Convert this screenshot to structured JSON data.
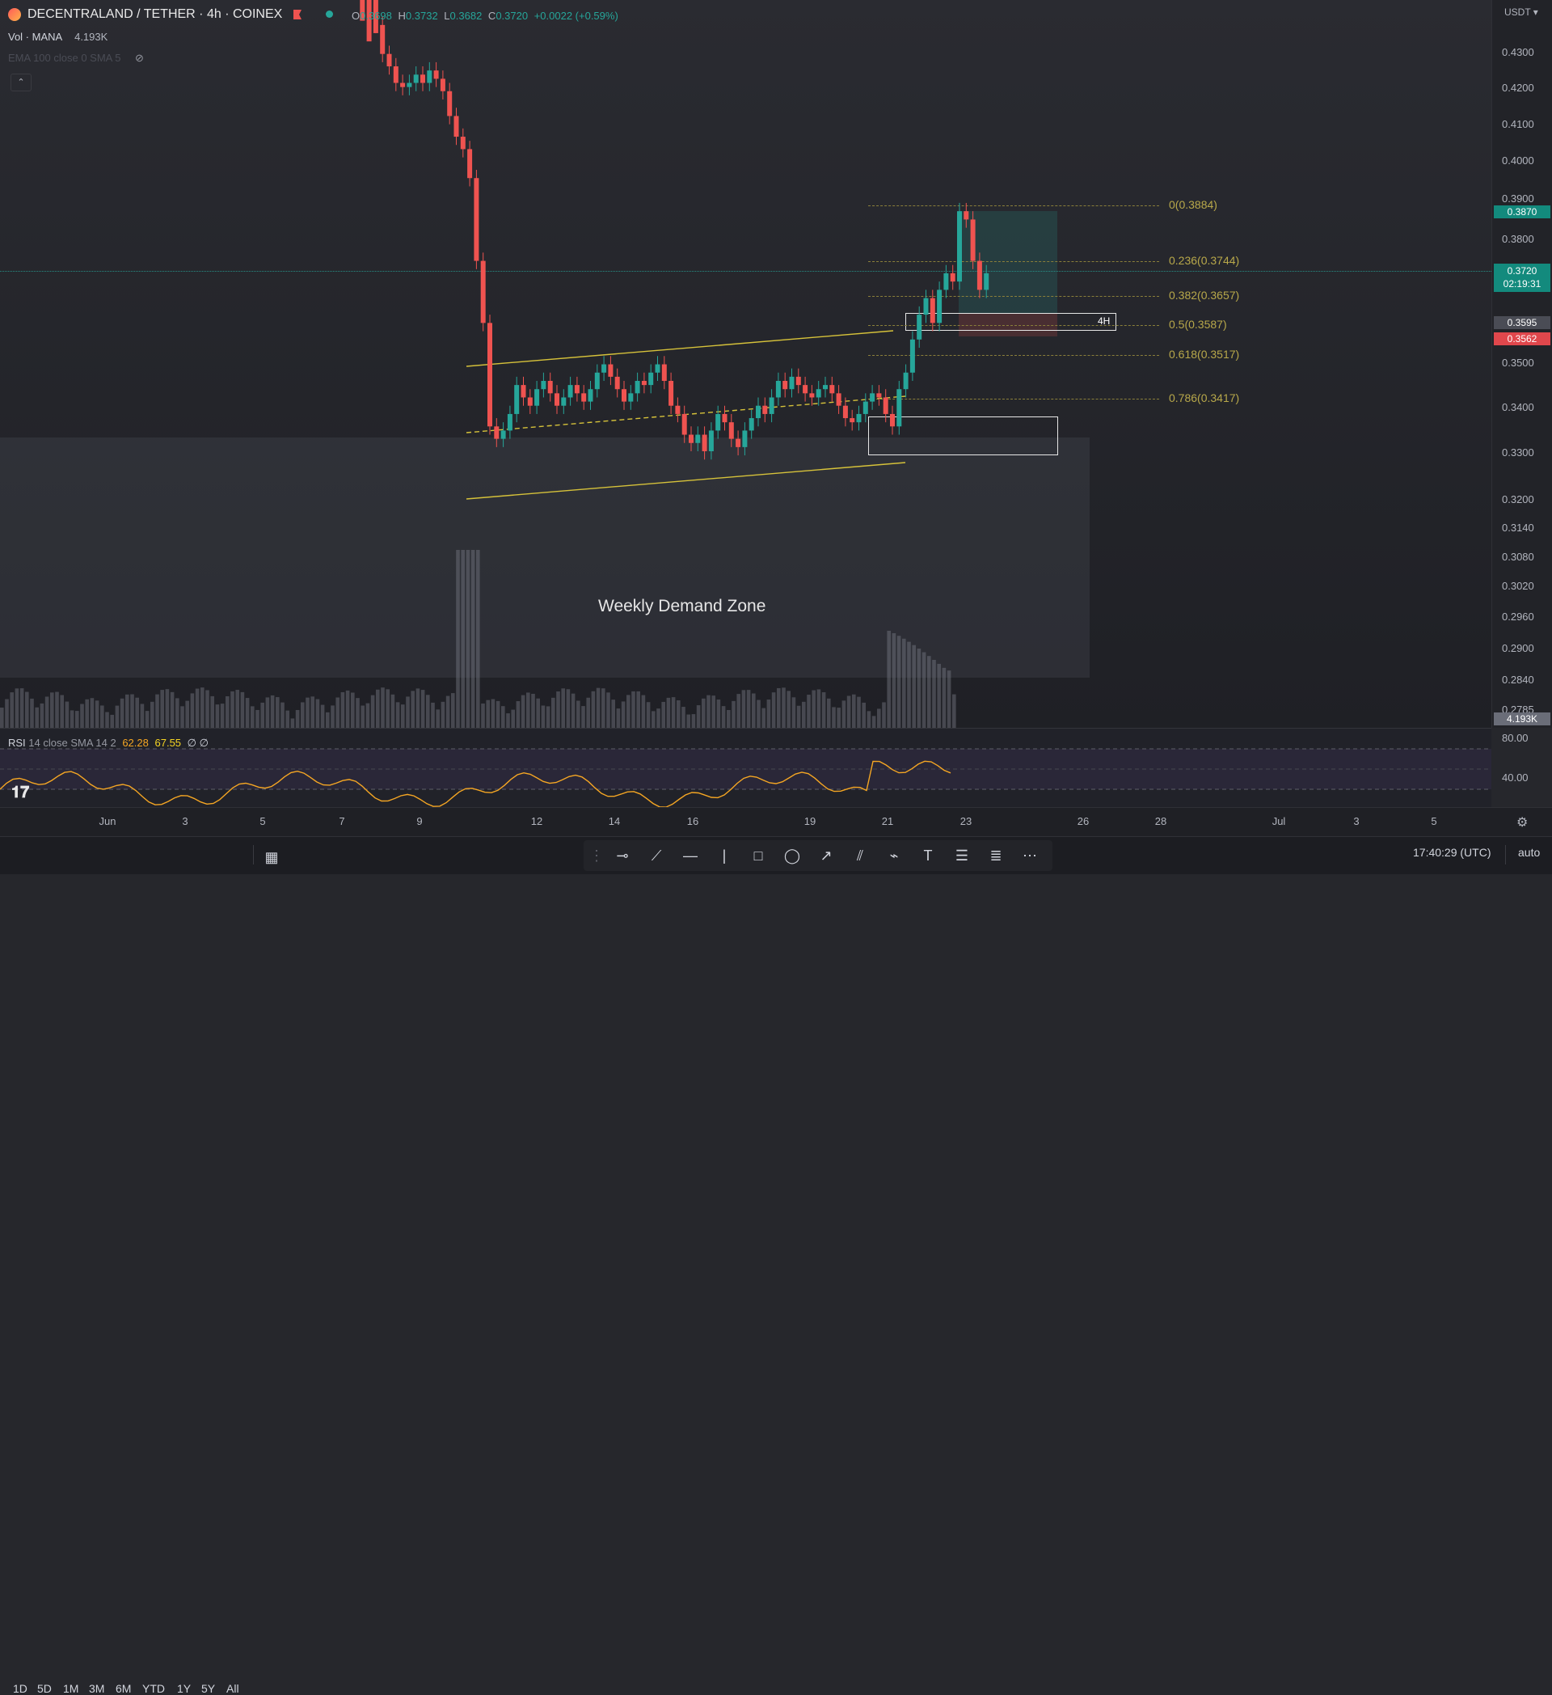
{
  "header": {
    "symbol_title": "DECENTRALAND / TETHER · 4h · COINEX",
    "ohlc": {
      "o_label": "O",
      "o": "0.3698",
      "h_label": "H",
      "h": "0.3732",
      "l_label": "L",
      "l": "0.3682",
      "c_label": "C",
      "c": "0.3720",
      "change": "+0.0022 (+0.59%)"
    },
    "volume_label": "Vol · MANA",
    "volume_value": "4.193K",
    "ema_label": "EMA 100 close 0 SMA 5",
    "currency": "USDT"
  },
  "price_scale": [
    "0.4300",
    "0.4200",
    "0.4100",
    "0.4000",
    "0.3900",
    "0.3800",
    "0.3500",
    "0.3400",
    "0.3300",
    "0.3200",
    "0.3140",
    "0.3080",
    "0.3020",
    "0.2960",
    "0.2900",
    "0.2840",
    "0.2785"
  ],
  "price_badges": {
    "high_marker": "0.3870",
    "last_price": "0.3720",
    "countdown": "02:19:31",
    "level_grey": "0.3595",
    "level_red": "0.3562",
    "volume": "4.193K"
  },
  "fib_levels": [
    "0(0.3884)",
    "0.236(0.3744)",
    "0.382(0.3657)",
    "0.5(0.3587)",
    "0.618(0.3517)",
    "0.786(0.3417)"
  ],
  "annotations": {
    "demand_zone": "Weekly Demand Zone",
    "timeframe_box": "4H"
  },
  "rsi": {
    "label": "RSI",
    "params": "14 close SMA 14 2",
    "value1": "62.28",
    "value2": "67.55",
    "extra": "∅ ∅",
    "scale_high": "80.00",
    "scale_low": "40.00"
  },
  "time_axis": [
    "Jun",
    "3",
    "5",
    "7",
    "9",
    "12",
    "14",
    "16",
    "19",
    "21",
    "23",
    "26",
    "28",
    "Jul",
    "3",
    "5"
  ],
  "bottom_bar": {
    "timeframes": [
      "1D",
      "5D",
      "1M",
      "3M",
      "6M",
      "YTD",
      "1Y",
      "5Y",
      "All"
    ],
    "clock": "17:40:29 (UTC)",
    "scale_mode": "auto"
  },
  "icons": [
    "chart-logo-icon",
    "hide-eye-icon",
    "collapse-chevron-icon",
    "calendar-goto-icon",
    "settings-gear-icon",
    "drag-handle-icon",
    "horizontal-ray-icon",
    "trend-line-icon",
    "horizontal-line-icon",
    "vertical-line-icon",
    "rectangle-icon",
    "ellipse-icon",
    "arrow-icon",
    "parallel-channel-icon",
    "path-icon",
    "text-icon",
    "fib-icon",
    "pitchfork-icon",
    "more-tools-icon"
  ],
  "colors": {
    "up": "#26a69a",
    "down": "#ef5350",
    "channel": "#d6c23a",
    "fib": "#b8a84a",
    "rsi": "#f5a623"
  }
}
